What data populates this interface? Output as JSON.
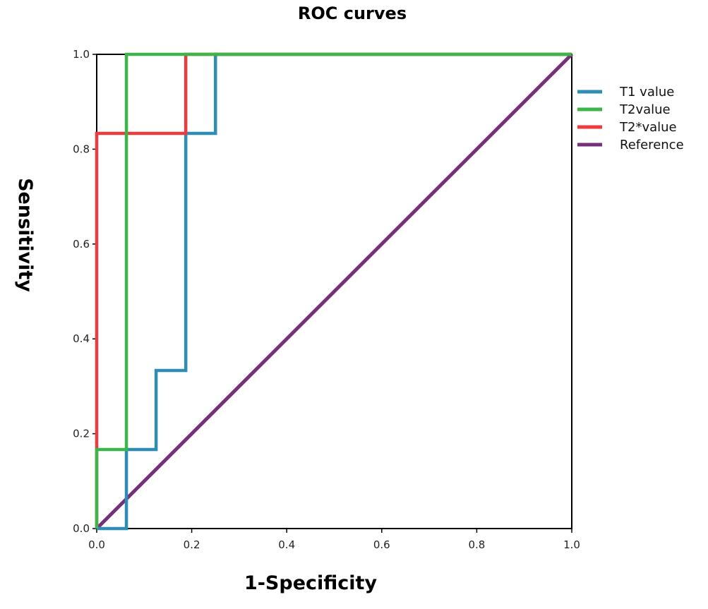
{
  "chart_data": {
    "type": "line",
    "title": "ROC curves",
    "xlabel": "1-Specificity",
    "ylabel": "Sensitivity",
    "xlim": [
      0,
      1
    ],
    "ylim": [
      0,
      1
    ],
    "xticks": [
      "0.0",
      "0.2",
      "0.4",
      "0.6",
      "0.8",
      "1.0"
    ],
    "yticks": [
      "0.0",
      "0.2",
      "0.4",
      "0.6",
      "0.8",
      "1.0"
    ],
    "grid": false,
    "legend_position": "right",
    "series": [
      {
        "name": "T1 value",
        "color": "#2e8db5",
        "x": [
          0.0,
          0.0625,
          0.0625,
          0.125,
          0.125,
          0.1875,
          0.1875,
          0.25,
          0.25,
          1.0
        ],
        "y": [
          0.0,
          0.0,
          0.1667,
          0.1667,
          0.3333,
          0.3333,
          0.8333,
          0.8333,
          1.0,
          1.0
        ]
      },
      {
        "name": "T2value",
        "color": "#3cb54a",
        "x": [
          0.0,
          0.0,
          0.0625,
          0.0625,
          1.0
        ],
        "y": [
          0.0,
          0.1667,
          0.1667,
          1.0,
          1.0
        ]
      },
      {
        "name": "T2*value",
        "color": "#ee3a3a",
        "x": [
          0.0,
          0.0,
          0.1875,
          0.1875,
          1.0
        ],
        "y": [
          0.0,
          0.8333,
          0.8333,
          1.0,
          1.0
        ]
      },
      {
        "name": "Reference",
        "color": "#772f7a",
        "x": [
          0.0,
          1.0
        ],
        "y": [
          0.0,
          1.0
        ]
      }
    ]
  }
}
